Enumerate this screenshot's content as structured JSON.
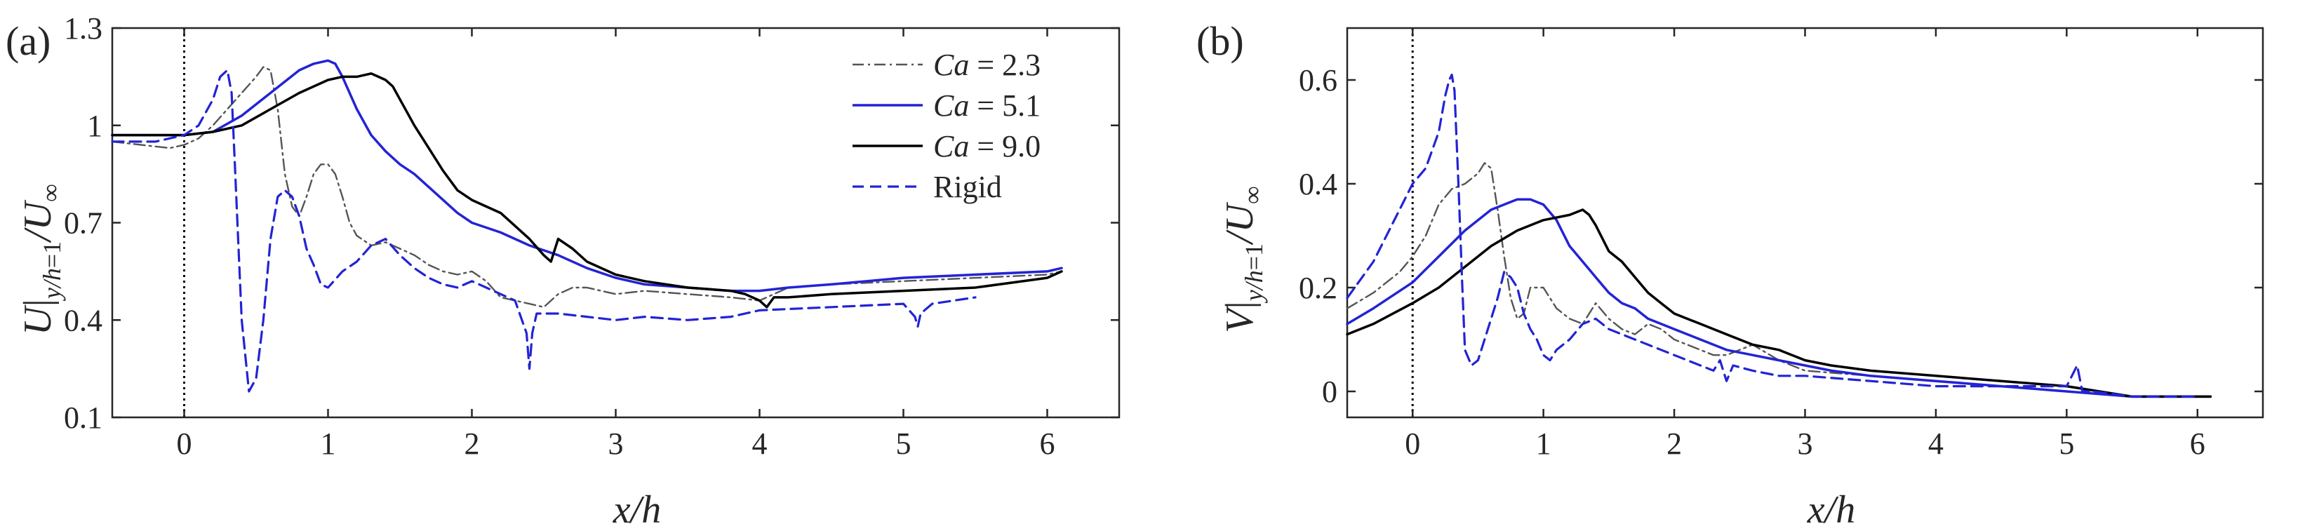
{
  "figure": {
    "panels": [
      "(a)",
      "(b)"
    ]
  },
  "chart_data": [
    {
      "type": "line",
      "panel_label": "(a)",
      "xlabel": "x/h",
      "ylabel": "U|y/h=1/U∞",
      "xlim": [
        -0.5,
        6.5
      ],
      "ylim": [
        0.1,
        1.3
      ],
      "xticks": [
        0,
        1,
        2,
        3,
        4,
        5,
        6
      ],
      "yticks": [
        0.1,
        0.4,
        0.7,
        1,
        1.3
      ],
      "ytick_labels": [
        "0.1",
        "0.4",
        "0.7",
        "1",
        "1.3"
      ],
      "vline_x": 0,
      "legend": {
        "location": "top-right"
      },
      "series": [
        {
          "name": "Ca = 2.3",
          "color": "#555555",
          "dash": "dashdot",
          "x": [
            -0.5,
            -0.3,
            -0.1,
            0,
            0.1,
            0.2,
            0.3,
            0.4,
            0.5,
            0.55,
            0.6,
            0.65,
            0.7,
            0.75,
            0.8,
            0.85,
            0.9,
            0.95,
            1.0,
            1.05,
            1.1,
            1.15,
            1.2,
            1.3,
            1.4,
            1.5,
            1.6,
            1.7,
            1.8,
            1.9,
            2.0,
            2.1,
            2.2,
            2.3,
            2.4,
            2.5,
            2.6,
            2.7,
            2.8,
            3.0,
            3.2,
            3.5,
            3.8,
            4.0,
            4.2,
            4.5,
            5.0,
            5.5,
            6.0,
            6.1
          ],
          "y": [
            0.95,
            0.94,
            0.93,
            0.94,
            0.96,
            1.0,
            1.05,
            1.1,
            1.15,
            1.18,
            1.17,
            1.05,
            0.85,
            0.75,
            0.72,
            0.78,
            0.85,
            0.88,
            0.88,
            0.85,
            0.78,
            0.7,
            0.66,
            0.63,
            0.64,
            0.62,
            0.6,
            0.57,
            0.55,
            0.54,
            0.55,
            0.52,
            0.47,
            0.46,
            0.45,
            0.44,
            0.48,
            0.5,
            0.5,
            0.48,
            0.49,
            0.48,
            0.47,
            0.46,
            0.5,
            0.51,
            0.52,
            0.53,
            0.54,
            0.55
          ]
        },
        {
          "name": "Ca = 5.1",
          "color": "#2323d6",
          "dash": "solid",
          "x": [
            -0.5,
            -0.2,
            0,
            0.2,
            0.4,
            0.6,
            0.8,
            0.9,
            1.0,
            1.05,
            1.1,
            1.2,
            1.3,
            1.4,
            1.5,
            1.6,
            1.7,
            1.8,
            1.9,
            2.0,
            2.2,
            2.4,
            2.6,
            2.8,
            3.0,
            3.2,
            3.5,
            3.8,
            4.0,
            4.2,
            4.5,
            5.0,
            5.5,
            6.0,
            6.1
          ],
          "y": [
            0.97,
            0.97,
            0.97,
            0.98,
            1.03,
            1.1,
            1.17,
            1.19,
            1.2,
            1.19,
            1.15,
            1.05,
            0.97,
            0.92,
            0.88,
            0.85,
            0.81,
            0.77,
            0.73,
            0.7,
            0.67,
            0.63,
            0.6,
            0.56,
            0.53,
            0.51,
            0.5,
            0.49,
            0.49,
            0.5,
            0.51,
            0.53,
            0.54,
            0.55,
            0.56
          ]
        },
        {
          "name": "Ca = 9.0",
          "color": "#000000",
          "dash": "solid",
          "x": [
            -0.5,
            -0.2,
            0,
            0.2,
            0.4,
            0.6,
            0.8,
            1.0,
            1.1,
            1.2,
            1.3,
            1.35,
            1.4,
            1.45,
            1.5,
            1.6,
            1.7,
            1.8,
            1.9,
            2.0,
            2.1,
            2.2,
            2.3,
            2.4,
            2.5,
            2.55,
            2.6,
            2.7,
            2.8,
            3.0,
            3.2,
            3.5,
            3.8,
            3.9,
            4.0,
            4.05,
            4.1,
            4.2,
            4.5,
            5.0,
            5.5,
            6.0,
            6.1
          ],
          "y": [
            0.97,
            0.97,
            0.97,
            0.98,
            1.0,
            1.05,
            1.1,
            1.14,
            1.15,
            1.15,
            1.16,
            1.15,
            1.14,
            1.12,
            1.08,
            1.0,
            0.93,
            0.86,
            0.8,
            0.77,
            0.75,
            0.73,
            0.69,
            0.65,
            0.6,
            0.58,
            0.65,
            0.62,
            0.58,
            0.54,
            0.52,
            0.5,
            0.49,
            0.48,
            0.46,
            0.44,
            0.47,
            0.47,
            0.48,
            0.49,
            0.5,
            0.53,
            0.55
          ]
        },
        {
          "name": "Rigid",
          "color": "#2323d6",
          "dash": "dashed",
          "x": [
            -0.5,
            -0.2,
            0,
            0.1,
            0.2,
            0.25,
            0.3,
            0.33,
            0.35,
            0.38,
            0.4,
            0.45,
            0.5,
            0.55,
            0.6,
            0.65,
            0.7,
            0.75,
            0.8,
            0.85,
            0.9,
            0.95,
            1.0,
            1.1,
            1.2,
            1.3,
            1.4,
            1.5,
            1.6,
            1.7,
            1.8,
            1.9,
            2.0,
            2.1,
            2.2,
            2.3,
            2.38,
            2.4,
            2.42,
            2.45,
            2.6,
            2.8,
            3.0,
            3.2,
            3.5,
            3.8,
            4.0,
            4.5,
            5.0,
            5.08,
            5.1,
            5.12,
            5.2,
            5.5
          ],
          "y": [
            0.95,
            0.95,
            0.97,
            1.0,
            1.08,
            1.15,
            1.17,
            1.1,
            0.9,
            0.6,
            0.4,
            0.18,
            0.22,
            0.4,
            0.65,
            0.78,
            0.8,
            0.78,
            0.72,
            0.62,
            0.57,
            0.51,
            0.5,
            0.55,
            0.58,
            0.63,
            0.65,
            0.6,
            0.56,
            0.53,
            0.51,
            0.5,
            0.52,
            0.5,
            0.48,
            0.46,
            0.36,
            0.25,
            0.36,
            0.42,
            0.42,
            0.41,
            0.4,
            0.41,
            0.4,
            0.41,
            0.43,
            0.44,
            0.45,
            0.41,
            0.38,
            0.42,
            0.45,
            0.47
          ]
        }
      ]
    },
    {
      "type": "line",
      "panel_label": "(b)",
      "xlabel": "x/h",
      "ylabel": "V|y/h=1/U∞",
      "xlim": [
        -0.5,
        6.5
      ],
      "ylim": [
        -0.05,
        0.7
      ],
      "xticks": [
        0,
        1,
        2,
        3,
        4,
        5,
        6
      ],
      "yticks": [
        0,
        0.2,
        0.4,
        0.6
      ],
      "ytick_labels": [
        "0",
        "0.2",
        "0.4",
        "0.6"
      ],
      "vline_x": 0,
      "series": [
        {
          "name": "Ca = 2.3",
          "color": "#555555",
          "dash": "dashdot",
          "x": [
            -0.5,
            -0.3,
            -0.1,
            0,
            0.1,
            0.2,
            0.3,
            0.4,
            0.5,
            0.55,
            0.6,
            0.65,
            0.7,
            0.75,
            0.8,
            0.85,
            0.9,
            1.0,
            1.1,
            1.2,
            1.3,
            1.4,
            1.5,
            1.6,
            1.7,
            1.8,
            1.9,
            2.0,
            2.1,
            2.2,
            2.3,
            2.4,
            2.5,
            2.6,
            2.8,
            3.0,
            3.5,
            4.0,
            4.5,
            5.0,
            5.5,
            6.0,
            6.1
          ],
          "y": [
            0.16,
            0.19,
            0.23,
            0.26,
            0.3,
            0.36,
            0.39,
            0.4,
            0.42,
            0.44,
            0.43,
            0.35,
            0.26,
            0.18,
            0.14,
            0.15,
            0.2,
            0.2,
            0.16,
            0.14,
            0.13,
            0.17,
            0.14,
            0.12,
            0.11,
            0.13,
            0.12,
            0.1,
            0.09,
            0.08,
            0.07,
            0.07,
            0.08,
            0.09,
            0.06,
            0.04,
            0.03,
            0.02,
            0.01,
            0.0,
            -0.01,
            -0.01,
            -0.01
          ]
        },
        {
          "name": "Ca = 5.1",
          "color": "#2323d6",
          "dash": "solid",
          "x": [
            -0.5,
            -0.3,
            0,
            0.2,
            0.4,
            0.6,
            0.8,
            0.9,
            1.0,
            1.1,
            1.2,
            1.3,
            1.4,
            1.5,
            1.6,
            1.7,
            1.8,
            1.9,
            2.0,
            2.2,
            2.4,
            2.6,
            2.8,
            3.0,
            3.2,
            3.5,
            4.0,
            4.5,
            5.0,
            5.5,
            6.0,
            6.1
          ],
          "y": [
            0.13,
            0.16,
            0.21,
            0.26,
            0.31,
            0.35,
            0.37,
            0.37,
            0.36,
            0.33,
            0.28,
            0.25,
            0.22,
            0.19,
            0.17,
            0.16,
            0.14,
            0.13,
            0.12,
            0.1,
            0.08,
            0.07,
            0.06,
            0.05,
            0.04,
            0.03,
            0.02,
            0.01,
            0.0,
            -0.01,
            -0.01,
            -0.01
          ]
        },
        {
          "name": "Ca = 9.0",
          "color": "#000000",
          "dash": "solid",
          "x": [
            -0.5,
            -0.3,
            0,
            0.2,
            0.4,
            0.6,
            0.8,
            1.0,
            1.2,
            1.3,
            1.35,
            1.4,
            1.5,
            1.6,
            1.7,
            1.8,
            1.9,
            2.0,
            2.2,
            2.4,
            2.6,
            2.8,
            3.0,
            3.2,
            3.5,
            4.0,
            4.5,
            5.0,
            5.5,
            6.0,
            6.1
          ],
          "y": [
            0.11,
            0.13,
            0.17,
            0.2,
            0.24,
            0.28,
            0.31,
            0.33,
            0.34,
            0.35,
            0.34,
            0.32,
            0.27,
            0.25,
            0.22,
            0.19,
            0.17,
            0.15,
            0.13,
            0.11,
            0.09,
            0.08,
            0.06,
            0.05,
            0.04,
            0.03,
            0.02,
            0.01,
            -0.01,
            -0.01,
            -0.01
          ]
        },
        {
          "name": "Rigid",
          "color": "#2323d6",
          "dash": "dashed",
          "x": [
            -0.5,
            -0.3,
            -0.1,
            0,
            0.1,
            0.2,
            0.25,
            0.28,
            0.3,
            0.32,
            0.35,
            0.38,
            0.4,
            0.45,
            0.5,
            0.55,
            0.6,
            0.65,
            0.7,
            0.75,
            0.8,
            0.85,
            0.9,
            0.95,
            1.0,
            1.05,
            1.1,
            1.2,
            1.3,
            1.4,
            1.5,
            1.6,
            1.7,
            1.8,
            1.9,
            2.0,
            2.1,
            2.2,
            2.3,
            2.35,
            2.4,
            2.45,
            2.6,
            2.8,
            3.0,
            3.5,
            4.0,
            4.5,
            5.0,
            5.08,
            5.12,
            5.2,
            5.5,
            6.0
          ],
          "y": [
            0.18,
            0.25,
            0.35,
            0.4,
            0.43,
            0.5,
            0.57,
            0.6,
            0.61,
            0.58,
            0.4,
            0.2,
            0.08,
            0.05,
            0.06,
            0.1,
            0.14,
            0.18,
            0.23,
            0.22,
            0.2,
            0.15,
            0.12,
            0.1,
            0.07,
            0.06,
            0.08,
            0.1,
            0.13,
            0.14,
            0.12,
            0.11,
            0.1,
            0.09,
            0.08,
            0.07,
            0.06,
            0.05,
            0.04,
            0.06,
            0.02,
            0.05,
            0.04,
            0.03,
            0.03,
            0.02,
            0.01,
            0.01,
            0.01,
            0.05,
            0.0,
            0.0,
            -0.01,
            -0.01
          ]
        }
      ]
    }
  ]
}
